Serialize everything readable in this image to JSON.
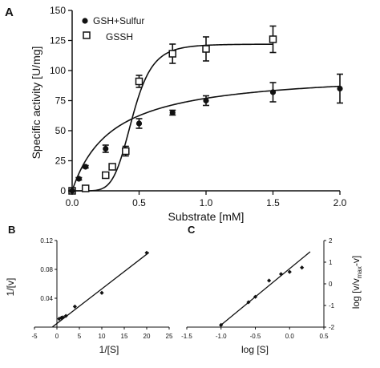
{
  "chart_data": [
    {
      "panel": "A",
      "type": "scatter",
      "ylabel": "Specific activity [U/mg]",
      "xlabel": "Substrate [mM]",
      "xlim": [
        0,
        2
      ],
      "ylim": [
        0,
        150
      ],
      "xticks": [
        "0.0",
        "0.5",
        "1.0",
        "1.5",
        "2.0"
      ],
      "yticks": [
        "0",
        "25",
        "50",
        "75",
        "100",
        "125",
        "150"
      ],
      "legend_position": "top-left",
      "series": [
        {
          "name": "GSH+Sulfur",
          "marker": "filled-circle",
          "points": [
            {
              "x": 0.0,
              "y": 0,
              "err": 0
            },
            {
              "x": 0.05,
              "y": 10,
              "err": 1
            },
            {
              "x": 0.1,
              "y": 20,
              "err": 1
            },
            {
              "x": 0.25,
              "y": 35,
              "err": 3
            },
            {
              "x": 0.5,
              "y": 56,
              "err": 4
            },
            {
              "x": 0.75,
              "y": 65,
              "err": 2
            },
            {
              "x": 1.0,
              "y": 75,
              "err": 4
            },
            {
              "x": 1.5,
              "y": 82,
              "err": 8
            },
            {
              "x": 2.0,
              "y": 85,
              "err": 12
            }
          ],
          "fit": {
            "model": "michaelis-menten",
            "vmax": 100,
            "km": 0.3
          }
        },
        {
          "name": "GSSH",
          "marker": "open-square",
          "points": [
            {
              "x": 0.0,
              "y": 0,
              "err": 0
            },
            {
              "x": 0.1,
              "y": 2,
              "err": 1
            },
            {
              "x": 0.25,
              "y": 13,
              "err": 1
            },
            {
              "x": 0.3,
              "y": 20,
              "err": 1
            },
            {
              "x": 0.4,
              "y": 33,
              "err": 4
            },
            {
              "x": 0.5,
              "y": 91,
              "err": 5
            },
            {
              "x": 0.75,
              "y": 114,
              "err": 8
            },
            {
              "x": 1.0,
              "y": 118,
              "err": 10
            },
            {
              "x": 1.5,
              "y": 126,
              "err": 11
            }
          ],
          "fit": {
            "model": "hill",
            "vmax": 122,
            "k": 0.45,
            "n": 6
          }
        }
      ]
    },
    {
      "panel": "B",
      "type": "scatter",
      "ylabel": "1/[v]",
      "xlabel": "1/[S]",
      "xlim": [
        -5,
        25
      ],
      "ylim": [
        0,
        0.12
      ],
      "xticks": [
        "-5",
        "0",
        "5",
        "10",
        "15",
        "20",
        "25"
      ],
      "yticks": [
        "0.04",
        "0.08",
        "0.12"
      ],
      "points": [
        {
          "x": 0.5,
          "y": 0.0115
        },
        {
          "x": 1.0,
          "y": 0.013
        },
        {
          "x": 1.33,
          "y": 0.0135
        },
        {
          "x": 2.0,
          "y": 0.0155
        },
        {
          "x": 4.0,
          "y": 0.0285
        },
        {
          "x": 10.0,
          "y": 0.0475
        },
        {
          "x": 20.0,
          "y": 0.103
        }
      ],
      "fit": {
        "slope": 0.0048,
        "intercept": 0.005
      }
    },
    {
      "panel": "C",
      "type": "scatter",
      "ylabel": "log [v/v_max-v]",
      "xlabel": "log [S]",
      "xlim": [
        -1.5,
        0.5
      ],
      "ylim": [
        -2,
        2
      ],
      "xticks": [
        "-1.5",
        "-1.0",
        "-0.5",
        "0.0",
        "0.5"
      ],
      "yticks": [
        "-2",
        "-1",
        "0",
        "1",
        "2"
      ],
      "points": [
        {
          "x": -1.0,
          "y": -1.9
        },
        {
          "x": -0.6,
          "y": -0.85
        },
        {
          "x": -0.5,
          "y": -0.6
        },
        {
          "x": -0.3,
          "y": 0.15
        },
        {
          "x": -0.125,
          "y": 0.45
        },
        {
          "x": 0.0,
          "y": 0.55
        },
        {
          "x": 0.18,
          "y": 0.75
        }
      ],
      "fit": {
        "slope": 2.6,
        "intercept": 0.7
      }
    }
  ],
  "labels": {
    "panel_a": "A",
    "panel_b": "B",
    "panel_c": "C",
    "legend_gsh": "GSH+Sulfur",
    "legend_gssh": "GSSH",
    "a_xlabel": "Substrate [mM]",
    "a_ylabel": "Specific activity [U/mg]",
    "b_xlabel": "1/[S]",
    "b_ylabel": "1/[v]",
    "c_xlabel": "log [S]",
    "c_ylabel_main": "log [v/v",
    "c_ylabel_sub": "max",
    "c_ylabel_tail": "-v]"
  }
}
